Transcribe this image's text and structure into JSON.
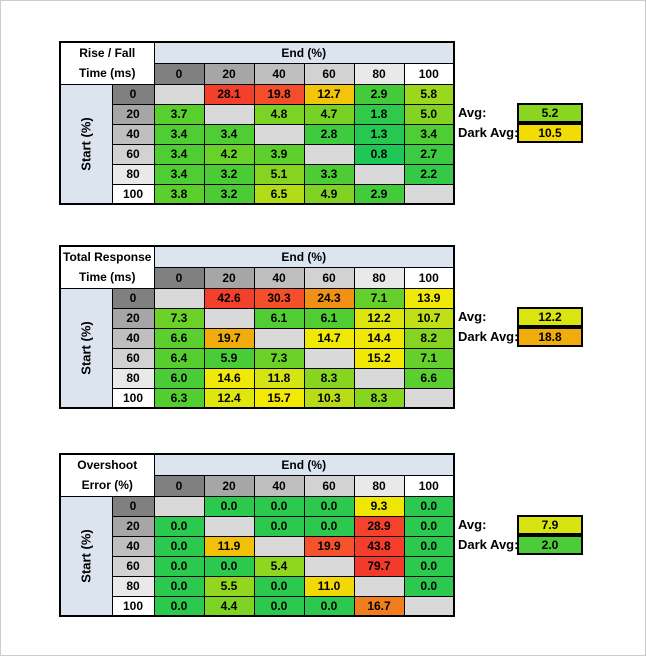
{
  "page": {
    "background": "#FFFFFF",
    "frame_border": "#CCCCCC"
  },
  "colors": {
    "axis_band_blue": "#DCE4F0",
    "blank_cell_gray": "#D9D9D9",
    "grid_border": "#000000",
    "header_gradient": [
      "#808080",
      "#A6A6A6",
      "#BFBFBF",
      "#D2D2D2",
      "#E9E9E9",
      "#FFFFFF"
    ]
  },
  "tables": [
    {
      "id": "rise-fall-time",
      "title_line1": "Rise / Fall",
      "title_line2": "Time (ms)",
      "end_header": "End (%)",
      "start_header": "Start (%)",
      "col_headers": [
        "0",
        "20",
        "40",
        "60",
        "80",
        "100"
      ],
      "row_headers": [
        "0",
        "20",
        "40",
        "60",
        "80",
        "100"
      ],
      "rows": [
        [
          {
            "v": "",
            "c": "#D9D9D9"
          },
          {
            "v": "28.1",
            "c": "#F4402B"
          },
          {
            "v": "19.8",
            "c": "#F44D2B"
          },
          {
            "v": "12.7",
            "c": "#F2C50A"
          },
          {
            "v": "2.9",
            "c": "#44CB3C"
          },
          {
            "v": "5.8",
            "c": "#9AD71E"
          }
        ],
        [
          {
            "v": "3.7",
            "c": "#58CF2F"
          },
          {
            "v": "",
            "c": "#D9D9D9"
          },
          {
            "v": "4.8",
            "c": "#7BD324"
          },
          {
            "v": "4.7",
            "c": "#78D225"
          },
          {
            "v": "1.8",
            "c": "#2FC94B"
          },
          {
            "v": "5.0",
            "c": "#83D422"
          }
        ],
        [
          {
            "v": "3.4",
            "c": "#4FCD34"
          },
          {
            "v": "3.4",
            "c": "#4FCD34"
          },
          {
            "v": "",
            "c": "#D9D9D9"
          },
          {
            "v": "2.8",
            "c": "#3ECB40"
          },
          {
            "v": "1.3",
            "c": "#27C851"
          },
          {
            "v": "3.4",
            "c": "#4FCD34"
          }
        ],
        [
          {
            "v": "3.4",
            "c": "#4FCD34"
          },
          {
            "v": "4.2",
            "c": "#68D12A"
          },
          {
            "v": "3.9",
            "c": "#5ED02D"
          },
          {
            "v": "",
            "c": "#D9D9D9"
          },
          {
            "v": "0.8",
            "c": "#1EC757"
          },
          {
            "v": "2.7",
            "c": "#3CCA42"
          }
        ],
        [
          {
            "v": "3.4",
            "c": "#4FCD34"
          },
          {
            "v": "3.2",
            "c": "#4BCC37"
          },
          {
            "v": "5.1",
            "c": "#86D421"
          },
          {
            "v": "3.3",
            "c": "#4DCC36"
          },
          {
            "v": "",
            "c": "#D9D9D9"
          },
          {
            "v": "2.2",
            "c": "#34CA47"
          }
        ],
        [
          {
            "v": "3.8",
            "c": "#5BCF2E"
          },
          {
            "v": "3.2",
            "c": "#4BCC37"
          },
          {
            "v": "6.5",
            "c": "#B2DC18"
          },
          {
            "v": "4.9",
            "c": "#80D323"
          },
          {
            "v": "2.9",
            "c": "#44CB3C"
          },
          {
            "v": "",
            "c": "#D9D9D9"
          }
        ]
      ],
      "avg_label": "Avg:",
      "avg_value": "5.2",
      "avg_color": "#8AD520",
      "dark_avg_label": "Dark Avg:",
      "dark_avg_value": "10.5",
      "dark_avg_color": "#F2DC04"
    },
    {
      "id": "total-response-time",
      "title_line1": "Total Response",
      "title_line2": "Time (ms)",
      "end_header": "End (%)",
      "start_header": "Start (%)",
      "col_headers": [
        "0",
        "20",
        "40",
        "60",
        "80",
        "100"
      ],
      "row_headers": [
        "0",
        "20",
        "40",
        "60",
        "80",
        "100"
      ],
      "rows": [
        [
          {
            "v": "",
            "c": "#D9D9D9"
          },
          {
            "v": "42.6",
            "c": "#F43F2B"
          },
          {
            "v": "30.3",
            "c": "#F44E2B"
          },
          {
            "v": "24.3",
            "c": "#F09014"
          },
          {
            "v": "7.1",
            "c": "#65D02B"
          },
          {
            "v": "13.9",
            "c": "#F0E806"
          }
        ],
        [
          {
            "v": "7.3",
            "c": "#6BD129"
          },
          {
            "v": "",
            "c": "#D9D9D9"
          },
          {
            "v": "6.1",
            "c": "#4FCD33"
          },
          {
            "v": "6.1",
            "c": "#4FCD33"
          },
          {
            "v": "12.2",
            "c": "#DCE510"
          },
          {
            "v": "10.7",
            "c": "#C0DF16"
          }
        ],
        [
          {
            "v": "6.6",
            "c": "#5ACF2F"
          },
          {
            "v": "19.7",
            "c": "#F0AC0C"
          },
          {
            "v": "",
            "c": "#D9D9D9"
          },
          {
            "v": "14.7",
            "c": "#F0E905"
          },
          {
            "v": "14.4",
            "c": "#EFE806"
          },
          {
            "v": "8.2",
            "c": "#86D421"
          }
        ],
        [
          {
            "v": "6.4",
            "c": "#56CE30"
          },
          {
            "v": "5.9",
            "c": "#48CC38"
          },
          {
            "v": "7.3",
            "c": "#6BD129"
          },
          {
            "v": "",
            "c": "#D9D9D9"
          },
          {
            "v": "15.2",
            "c": "#F1E904"
          },
          {
            "v": "7.1",
            "c": "#65D02B"
          }
        ],
        [
          {
            "v": "6.0",
            "c": "#4ACC36"
          },
          {
            "v": "14.6",
            "c": "#F0E806"
          },
          {
            "v": "11.8",
            "c": "#D5E412"
          },
          {
            "v": "8.3",
            "c": "#88D520"
          },
          {
            "v": "",
            "c": "#D9D9D9"
          },
          {
            "v": "6.6",
            "c": "#5ACF2F"
          }
        ],
        [
          {
            "v": "6.3",
            "c": "#53CE31"
          },
          {
            "v": "12.4",
            "c": "#DFE60E"
          },
          {
            "v": "15.7",
            "c": "#F2EA03"
          },
          {
            "v": "10.3",
            "c": "#B8DD18"
          },
          {
            "v": "8.3",
            "c": "#88D520"
          },
          {
            "v": "",
            "c": "#D9D9D9"
          }
        ]
      ],
      "avg_label": "Avg:",
      "avg_value": "12.2",
      "avg_color": "#D9E411",
      "dark_avg_label": "Dark Avg:",
      "dark_avg_value": "18.8",
      "dark_avg_color": "#F0AC0C"
    },
    {
      "id": "overshoot-error",
      "title_line1": "Overshoot",
      "title_line2": "Error (%)",
      "end_header": "End (%)",
      "start_header": "Start (%)",
      "col_headers": [
        "0",
        "20",
        "40",
        "60",
        "80",
        "100"
      ],
      "row_headers": [
        "0",
        "20",
        "40",
        "60",
        "80",
        "100"
      ],
      "rows": [
        [
          {
            "v": "",
            "c": "#D9D9D9"
          },
          {
            "v": "0.0",
            "c": "#2BC94D"
          },
          {
            "v": "0.0",
            "c": "#2BC94D"
          },
          {
            "v": "0.0",
            "c": "#2BC94D"
          },
          {
            "v": "9.3",
            "c": "#F0E606"
          },
          {
            "v": "0.0",
            "c": "#2BC94D"
          }
        ],
        [
          {
            "v": "0.0",
            "c": "#2BC94D"
          },
          {
            "v": "",
            "c": "#D9D9D9"
          },
          {
            "v": "0.0",
            "c": "#2BC94D"
          },
          {
            "v": "0.0",
            "c": "#2BC94D"
          },
          {
            "v": "28.9",
            "c": "#F4422B"
          },
          {
            "v": "0.0",
            "c": "#2BC94D"
          }
        ],
        [
          {
            "v": "0.0",
            "c": "#2BC94D"
          },
          {
            "v": "11.9",
            "c": "#F2C107"
          },
          {
            "v": "",
            "c": "#D9D9D9"
          },
          {
            "v": "19.9",
            "c": "#F4532C"
          },
          {
            "v": "43.8",
            "c": "#F43E2B"
          },
          {
            "v": "0.0",
            "c": "#2BC94D"
          }
        ],
        [
          {
            "v": "0.0",
            "c": "#2BC94D"
          },
          {
            "v": "0.0",
            "c": "#2BC94D"
          },
          {
            "v": "5.4",
            "c": "#8FD621"
          },
          {
            "v": "",
            "c": "#D9D9D9"
          },
          {
            "v": "79.7",
            "c": "#F43A2A"
          },
          {
            "v": "0.0",
            "c": "#2BC94D"
          }
        ],
        [
          {
            "v": "0.0",
            "c": "#2BC94D"
          },
          {
            "v": "5.5",
            "c": "#92D620"
          },
          {
            "v": "0.0",
            "c": "#2BC94D"
          },
          {
            "v": "11.0",
            "c": "#F2D805"
          },
          {
            "v": "",
            "c": "#D9D9D9"
          },
          {
            "v": "0.0",
            "c": "#2BC94D"
          }
        ],
        [
          {
            "v": "0.0",
            "c": "#2BC94D"
          },
          {
            "v": "4.4",
            "c": "#7ED424"
          },
          {
            "v": "0.0",
            "c": "#2BC94D"
          },
          {
            "v": "0.0",
            "c": "#2BC94D"
          },
          {
            "v": "16.7",
            "c": "#F07D1E"
          },
          {
            "v": "",
            "c": "#D9D9D9"
          }
        ]
      ],
      "avg_label": "Avg:",
      "avg_value": "7.9",
      "avg_color": "#D8E411",
      "dark_avg_label": "Dark Avg:",
      "dark_avg_value": "2.0",
      "dark_avg_color": "#4CCB3B"
    }
  ],
  "chart_data": [
    {
      "type": "heatmap",
      "title": "Rise / Fall Time (ms)",
      "xlabel": "End (%)",
      "ylabel": "Start (%)",
      "x": [
        0,
        20,
        40,
        60,
        80,
        100
      ],
      "y": [
        0,
        20,
        40,
        60,
        80,
        100
      ],
      "values": [
        [
          null,
          28.1,
          19.8,
          12.7,
          2.9,
          5.8
        ],
        [
          3.7,
          null,
          4.8,
          4.7,
          1.8,
          5.0
        ],
        [
          3.4,
          3.4,
          null,
          2.8,
          1.3,
          3.4
        ],
        [
          3.4,
          4.2,
          3.9,
          null,
          0.8,
          2.7
        ],
        [
          3.4,
          3.2,
          5.1,
          3.3,
          null,
          2.2
        ],
        [
          3.8,
          3.2,
          6.5,
          4.9,
          2.9,
          null
        ]
      ],
      "avg": 5.2,
      "dark_avg": 10.5,
      "colorscale": "green-yellow-red (low to high)"
    },
    {
      "type": "heatmap",
      "title": "Total Response Time (ms)",
      "xlabel": "End (%)",
      "ylabel": "Start (%)",
      "x": [
        0,
        20,
        40,
        60,
        80,
        100
      ],
      "y": [
        0,
        20,
        40,
        60,
        80,
        100
      ],
      "values": [
        [
          null,
          42.6,
          30.3,
          24.3,
          7.1,
          13.9
        ],
        [
          7.3,
          null,
          6.1,
          6.1,
          12.2,
          10.7
        ],
        [
          6.6,
          19.7,
          null,
          14.7,
          14.4,
          8.2
        ],
        [
          6.4,
          5.9,
          7.3,
          null,
          15.2,
          7.1
        ],
        [
          6.0,
          14.6,
          11.8,
          8.3,
          null,
          6.6
        ],
        [
          6.3,
          12.4,
          15.7,
          10.3,
          8.3,
          null
        ]
      ],
      "avg": 12.2,
      "dark_avg": 18.8,
      "colorscale": "green-yellow-red (low to high)"
    },
    {
      "type": "heatmap",
      "title": "Overshoot Error (%)",
      "xlabel": "End (%)",
      "ylabel": "Start (%)",
      "x": [
        0,
        20,
        40,
        60,
        80,
        100
      ],
      "y": [
        0,
        20,
        40,
        60,
        80,
        100
      ],
      "values": [
        [
          null,
          0.0,
          0.0,
          0.0,
          9.3,
          0.0
        ],
        [
          0.0,
          null,
          0.0,
          0.0,
          28.9,
          0.0
        ],
        [
          0.0,
          11.9,
          null,
          19.9,
          43.8,
          0.0
        ],
        [
          0.0,
          0.0,
          5.4,
          null,
          79.7,
          0.0
        ],
        [
          0.0,
          5.5,
          0.0,
          11.0,
          null,
          0.0
        ],
        [
          0.0,
          4.4,
          0.0,
          0.0,
          16.7,
          null
        ]
      ],
      "avg": 7.9,
      "dark_avg": 2.0,
      "colorscale": "green-yellow-red (low to high)"
    }
  ]
}
